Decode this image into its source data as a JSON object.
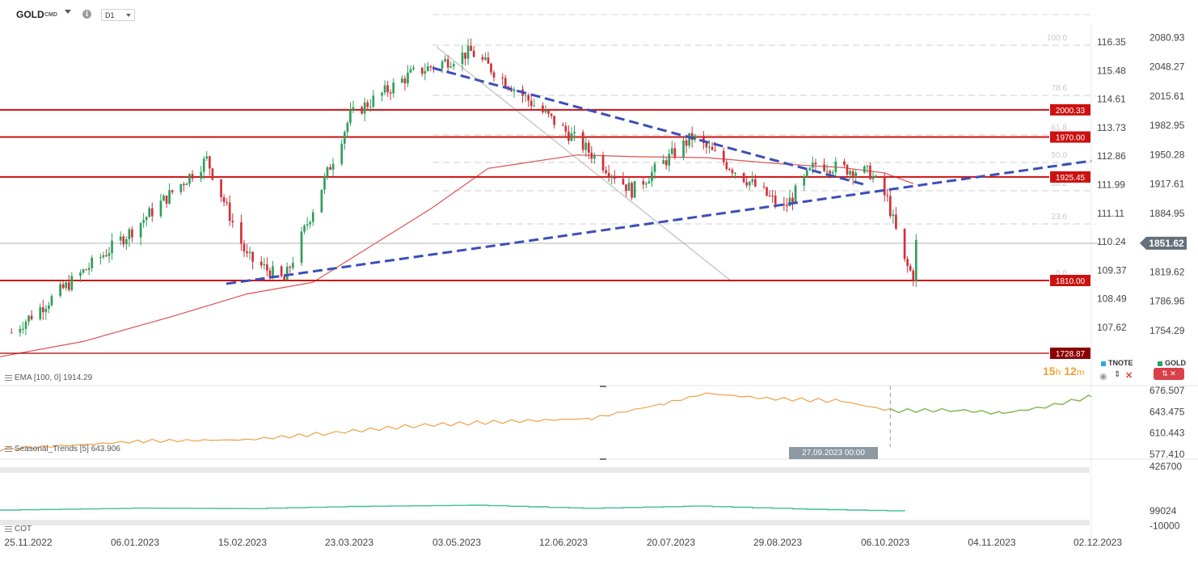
{
  "header": {
    "symbol": "GOLD",
    "symbol_sub": "CMD",
    "info_icon": "info-icon",
    "timeframe": "D1"
  },
  "price_axis": {
    "gold_ticks": [
      {
        "v": 2080.93,
        "t": "2080.93"
      },
      {
        "v": 2048.27,
        "t": "2048.27"
      },
      {
        "v": 2015.61,
        "t": "2015.61"
      },
      {
        "v": 1982.95,
        "t": "1982.95"
      },
      {
        "v": 1950.28,
        "t": "1950.28"
      },
      {
        "v": 1917.61,
        "t": "1917.61"
      },
      {
        "v": 1884.95,
        "t": "1884.95"
      },
      {
        "v": 1819.62,
        "t": "1819.62"
      },
      {
        "v": 1786.96,
        "t": "1786.96"
      },
      {
        "v": 1754.29,
        "t": "1754.29"
      }
    ],
    "tnote_ticks": [
      {
        "v": 116.35,
        "t": "116.35"
      },
      {
        "v": 115.48,
        "t": "115.48"
      },
      {
        "v": 114.61,
        "t": "114.61"
      },
      {
        "v": 113.73,
        "t": "113.73"
      },
      {
        "v": 112.86,
        "t": "112.86"
      },
      {
        "v": 111.99,
        "t": "111.99"
      },
      {
        "v": 111.11,
        "t": "111.11"
      },
      {
        "v": 110.24,
        "t": "110.24"
      },
      {
        "v": 109.37,
        "t": "109.37"
      },
      {
        "v": 108.49,
        "t": "108.49"
      },
      {
        "v": 107.62,
        "t": "107.62"
      }
    ],
    "current_price": "1851.62"
  },
  "levels": [
    {
      "value": 2000.33,
      "label": "2000.33",
      "color": "#cc1111"
    },
    {
      "value": 1970.0,
      "label": "1970.00",
      "color": "#cc1111"
    },
    {
      "value": 1925.45,
      "label": "1925.45",
      "color": "#cc1111"
    },
    {
      "value": 1810.0,
      "label": "1810.00",
      "color": "#cc1111"
    },
    {
      "value": 1728.87,
      "label": "1728.87",
      "color": "#aa0000"
    }
  ],
  "fibonacci": [
    "100.0",
    "78.6",
    "61.8",
    "50.0",
    "38.2",
    "23.6",
    "0.0"
  ],
  "x_axis": [
    "25.11.2022",
    "06.01.2023",
    "15.02.2023",
    "23.03.2023",
    "03.05.2023",
    "12.06.2023",
    "20.07.2023",
    "29.08.2023",
    "06.10.2023",
    "04.11.2023",
    "02.12.2023"
  ],
  "indicators": {
    "ema_label": "EMA [100, 0] 1914.29",
    "seasonal_label": "Seasonal_Trends [5] 643.906",
    "seasonal_ticks": [
      {
        "v": 676.507,
        "t": "676.507"
      },
      {
        "v": 643.475,
        "t": "643.475"
      },
      {
        "v": 610.443,
        "t": "610.443"
      },
      {
        "v": 577.41,
        "t": "577.410"
      }
    ],
    "cot_label": "COT",
    "cot_ticks": [
      {
        "v": 426700,
        "t": "426700"
      },
      {
        "v": 99024,
        "t": "99024"
      },
      {
        "v": -10000,
        "t": "-10000"
      }
    ]
  },
  "legend": {
    "tnote": "TNOTE",
    "tnote_color": "#2fa8e0",
    "gold": "GOLD",
    "gold_color": "#26a269"
  },
  "timer": {
    "h": "15",
    "h_unit": "h",
    "m": "12",
    "m_unit": "m"
  },
  "crosshair_date": "27.09.2023 00:00",
  "chart_data": {
    "type": "candlestick",
    "instrument": "GOLD",
    "timeframe": "D1",
    "ylim": [
      1720,
      2095
    ],
    "x_range": [
      "2022-11-21",
      "2023-12-06"
    ],
    "key_points": [
      {
        "date": "2022-11-25",
        "close": 1752
      },
      {
        "date": "2023-01-06",
        "close": 1866
      },
      {
        "date": "2023-02-01",
        "close": 1945
      },
      {
        "date": "2023-02-15",
        "close": 1836
      },
      {
        "date": "2023-02-28",
        "close": 1810
      },
      {
        "date": "2023-03-23",
        "close": 1994
      },
      {
        "date": "2023-04-13",
        "close": 2040
      },
      {
        "date": "2023-05-04",
        "close": 2065
      },
      {
        "date": "2023-06-12",
        "close": 1960
      },
      {
        "date": "2023-06-29",
        "close": 1910
      },
      {
        "date": "2023-07-20",
        "close": 1970
      },
      {
        "date": "2023-08-21",
        "close": 1890
      },
      {
        "date": "2023-09-01",
        "close": 1940
      },
      {
        "date": "2023-09-20",
        "close": 1930
      },
      {
        "date": "2023-09-26",
        "close": 1900
      },
      {
        "date": "2023-10-02",
        "close": 1830
      },
      {
        "date": "2023-10-05",
        "close": 1815
      },
      {
        "date": "2023-10-06",
        "close": 1851.62
      }
    ],
    "ema_100": 1914.29,
    "seasonal_series": [
      {
        "date": "2022-11-21",
        "v": 585
      },
      {
        "date": "2023-01-10",
        "v": 598
      },
      {
        "date": "2023-02-15",
        "v": 600
      },
      {
        "date": "2023-03-15",
        "v": 610
      },
      {
        "date": "2023-04-15",
        "v": 622
      },
      {
        "date": "2023-05-15",
        "v": 628
      },
      {
        "date": "2023-06-15",
        "v": 633
      },
      {
        "date": "2023-07-10",
        "v": 656
      },
      {
        "date": "2023-07-25",
        "v": 672
      },
      {
        "date": "2023-08-15",
        "v": 664
      },
      {
        "date": "2023-09-10",
        "v": 660
      },
      {
        "date": "2023-09-27",
        "v": 645
      },
      {
        "date": "2023-10-20",
        "v": 646
      },
      {
        "date": "2023-11-05",
        "v": 641
      },
      {
        "date": "2023-11-20",
        "v": 651
      },
      {
        "date": "2023-12-06",
        "v": 667
      }
    ],
    "cot_series": [
      {
        "date": "2022-11-21",
        "v": 105000
      },
      {
        "date": "2023-01-06",
        "v": 119000
      },
      {
        "date": "2023-02-15",
        "v": 116000
      },
      {
        "date": "2023-03-23",
        "v": 132000
      },
      {
        "date": "2023-05-03",
        "v": 141000
      },
      {
        "date": "2023-06-12",
        "v": 118000
      },
      {
        "date": "2023-07-20",
        "v": 134000
      },
      {
        "date": "2023-08-29",
        "v": 111000
      },
      {
        "date": "2023-09-27",
        "v": 99024
      }
    ]
  }
}
